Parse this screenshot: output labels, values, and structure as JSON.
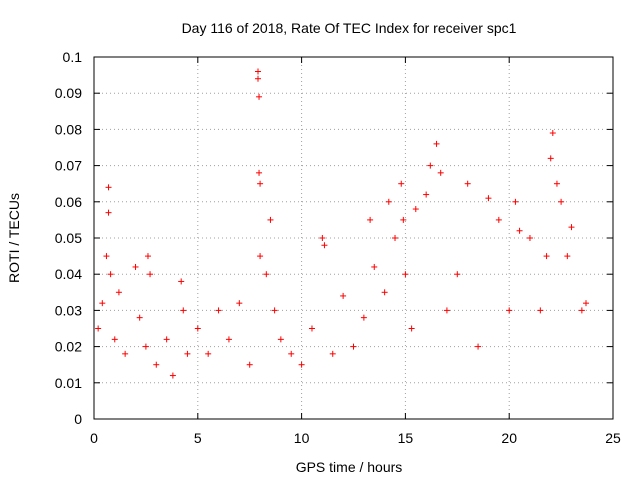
{
  "chart_data": {
    "type": "scatter",
    "title": "Day 116 of 2018, Rate Of TEC Index for receiver spc1",
    "xlabel": "GPS time / hours",
    "ylabel": "ROTI / TECUs",
    "xlim": [
      0,
      25
    ],
    "ylim": [
      0,
      0.1
    ],
    "xticks": [
      "0",
      "5",
      "10",
      "15",
      "20",
      "25"
    ],
    "yticks": [
      "0",
      "0.01",
      "0.02",
      "0.03",
      "0.04",
      "0.05",
      "0.06",
      "0.07",
      "0.08",
      "0.09",
      "0.1"
    ],
    "grid": true,
    "marker": "+",
    "color": "#ff0000",
    "series": [
      {
        "name": "ROTI",
        "x": [
          0.2,
          0.4,
          0.6,
          0.7,
          0.7,
          0.8,
          1.0,
          1.2,
          1.5,
          2.0,
          2.2,
          2.5,
          2.6,
          2.7,
          3.0,
          3.5,
          3.8,
          4.2,
          4.3,
          4.5,
          5.0,
          5.5,
          6.0,
          6.5,
          7.0,
          7.5,
          7.9,
          7.9,
          7.95,
          7.95,
          8.0,
          8.0,
          8.3,
          8.5,
          8.7,
          9.0,
          9.5,
          10.0,
          10.5,
          11.0,
          11.1,
          11.5,
          12.0,
          12.5,
          13.0,
          13.3,
          13.5,
          14.0,
          14.2,
          14.5,
          14.8,
          14.9,
          15.0,
          15.3,
          15.5,
          16.0,
          16.2,
          16.5,
          16.7,
          17.0,
          17.5,
          18.0,
          18.5,
          19.0,
          19.5,
          20.0,
          20.3,
          20.5,
          21.0,
          21.5,
          21.8,
          22.0,
          22.1,
          22.3,
          22.5,
          22.8,
          23.0,
          23.5,
          23.7
        ],
        "y": [
          0.025,
          0.032,
          0.045,
          0.064,
          0.057,
          0.04,
          0.022,
          0.035,
          0.018,
          0.042,
          0.028,
          0.02,
          0.045,
          0.04,
          0.015,
          0.022,
          0.012,
          0.038,
          0.03,
          0.018,
          0.025,
          0.018,
          0.03,
          0.022,
          0.032,
          0.015,
          0.096,
          0.094,
          0.089,
          0.068,
          0.065,
          0.045,
          0.04,
          0.055,
          0.03,
          0.022,
          0.018,
          0.015,
          0.025,
          0.05,
          0.048,
          0.018,
          0.034,
          0.02,
          0.028,
          0.055,
          0.042,
          0.035,
          0.06,
          0.05,
          0.065,
          0.055,
          0.04,
          0.025,
          0.058,
          0.062,
          0.07,
          0.076,
          0.068,
          0.03,
          0.04,
          0.065,
          0.02,
          0.061,
          0.055,
          0.03,
          0.06,
          0.052,
          0.05,
          0.03,
          0.045,
          0.072,
          0.079,
          0.065,
          0.06,
          0.045,
          0.053,
          0.03,
          0.032
        ]
      }
    ]
  }
}
